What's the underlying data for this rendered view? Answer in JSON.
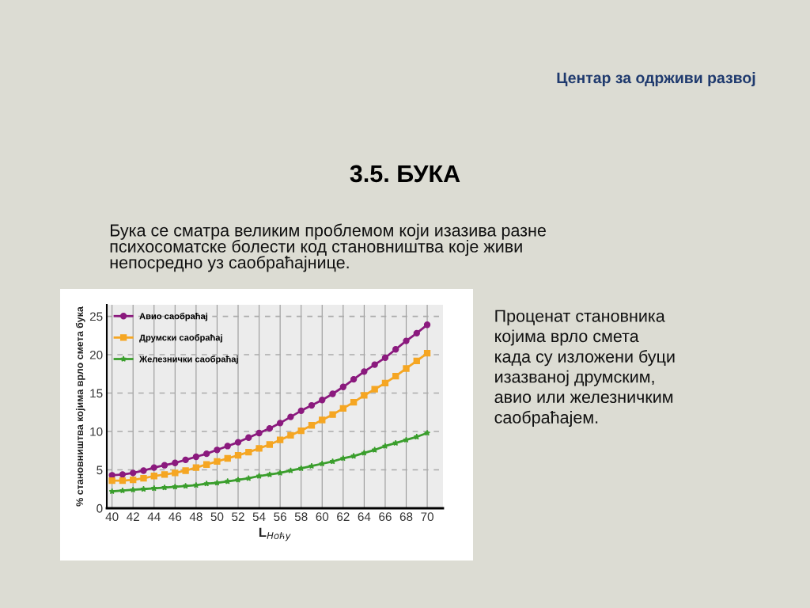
{
  "chart_data": {
    "type": "line",
    "title": "3.5. БУКА",
    "xlabel": "L$_{Ноћу}$",
    "ylabel": "% становништва којима врло смета бука",
    "x": [
      40,
      41,
      42,
      43,
      44,
      45,
      46,
      47,
      48,
      49,
      50,
      51,
      52,
      53,
      54,
      55,
      56,
      57,
      58,
      59,
      60,
      61,
      62,
      63,
      64,
      65,
      66,
      67,
      68,
      69,
      70
    ],
    "series": [
      {
        "name": "Авио саобраћај",
        "color": "#8b1a7e",
        "marker": "circle",
        "values": [
          4.3,
          4.4,
          4.6,
          4.9,
          5.3,
          5.6,
          5.9,
          6.3,
          6.7,
          7.1,
          7.6,
          8.1,
          8.6,
          9.2,
          9.8,
          10.4,
          11.1,
          11.9,
          12.7,
          13.4,
          14.1,
          14.9,
          15.8,
          16.8,
          17.8,
          18.7,
          19.6,
          20.7,
          21.8,
          22.8,
          23.9
        ]
      },
      {
        "name": "Друмски саобраћај",
        "color": "#f5a623",
        "marker": "square",
        "values": [
          3.6,
          3.6,
          3.7,
          3.9,
          4.2,
          4.4,
          4.6,
          4.9,
          5.3,
          5.7,
          6.1,
          6.5,
          6.9,
          7.3,
          7.8,
          8.3,
          8.9,
          9.5,
          10.1,
          10.8,
          11.5,
          12.2,
          13.0,
          13.8,
          14.7,
          15.5,
          16.3,
          17.2,
          18.2,
          19.2,
          20.2
        ]
      },
      {
        "name": "Железнички саобраћај",
        "color": "#3a9e2c",
        "marker": "star",
        "values": [
          2.2,
          2.3,
          2.4,
          2.5,
          2.6,
          2.7,
          2.8,
          2.9,
          3.0,
          3.2,
          3.3,
          3.5,
          3.7,
          3.9,
          4.2,
          4.4,
          4.6,
          4.9,
          5.2,
          5.5,
          5.8,
          6.1,
          6.5,
          6.8,
          7.2,
          7.6,
          8.1,
          8.5,
          8.9,
          9.3,
          9.8
        ]
      }
    ],
    "xlim": [
      39.5,
      71.5
    ],
    "xticks": [
      40,
      42,
      44,
      46,
      48,
      50,
      52,
      54,
      56,
      58,
      60,
      62,
      64,
      66,
      68,
      70
    ],
    "ylim": [
      0,
      26.5
    ],
    "yticks": [
      0,
      5,
      10,
      15,
      20,
      25
    ],
    "grid": true,
    "legend": "top left",
    "line_style": "solid",
    "annotations": [
      "Центар за одрживи развој",
      "Бука се сматра великим проблемом који изазива разне\nпсихосоматске болести код становништва које живи\nнепосредно уз саобраћајнице.",
      "Проценат становника\nкојима врло смета\nкада су изложени буци\nизазваној друмским,\nавио или железничким\nсаобраћајем."
    ]
  }
}
